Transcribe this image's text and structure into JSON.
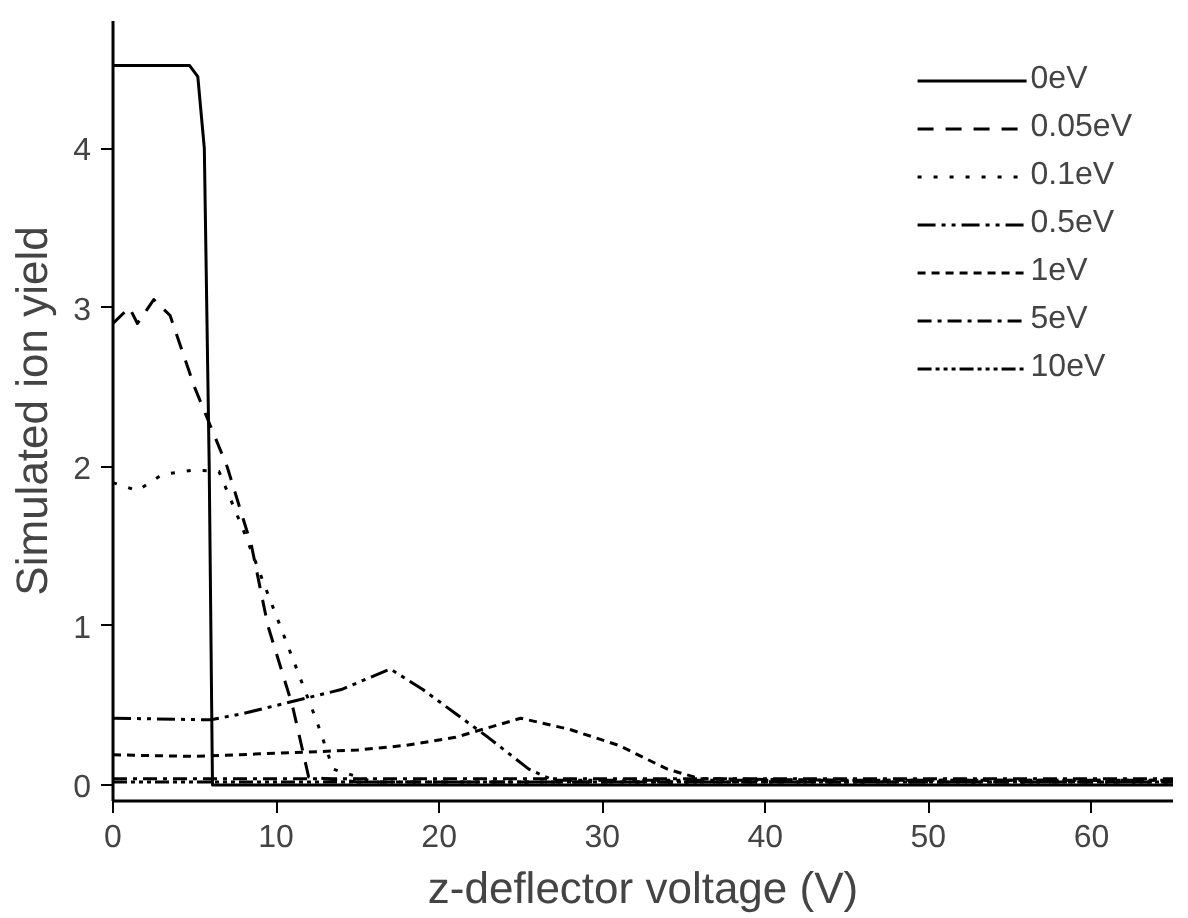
{
  "chart_data": {
    "type": "line",
    "xlabel": "z-deflector voltage (V)",
    "ylabel": "Simulated ion yield",
    "xlim": [
      0,
      65
    ],
    "ylim": [
      -0.1,
      4.8
    ],
    "xticks": [
      0,
      10,
      20,
      30,
      40,
      50,
      60
    ],
    "yticks": [
      0,
      1,
      2,
      3,
      4
    ],
    "grid": false,
    "legend": "top right",
    "marker": "none",
    "series": [
      {
        "name": "0eV",
        "color": "#000000",
        "line_style": "solid",
        "x": [
          0,
          2,
          4,
          4.7,
          5.2,
          5.6,
          5.9,
          6.1,
          10,
          20,
          30,
          40,
          50,
          60,
          65
        ],
        "values": [
          4.52,
          4.52,
          4.52,
          4.52,
          4.45,
          4.0,
          2.0,
          0.0,
          0.0,
          0.0,
          0.0,
          0.0,
          0.0,
          0.0,
          0.0
        ]
      },
      {
        "name": "0.05eV",
        "color": "#000000",
        "line_style": "dashed",
        "x": [
          0,
          1,
          1.5,
          2.5,
          3.5,
          5,
          7,
          8.5,
          9.5,
          11,
          12,
          15,
          30,
          50,
          65
        ],
        "values": [
          2.9,
          3.0,
          2.9,
          3.05,
          2.95,
          2.5,
          2.0,
          1.5,
          1.0,
          0.5,
          0.05,
          0.02,
          0.02,
          0.02,
          0.02
        ]
      },
      {
        "name": "0.1eV",
        "color": "#000000",
        "line_style": "dotted",
        "x": [
          0,
          1.5,
          3,
          5,
          6.5,
          8,
          9.5,
          11,
          12.5,
          13.5,
          16,
          30,
          50,
          65
        ],
        "values": [
          1.9,
          1.85,
          1.95,
          1.98,
          1.97,
          1.6,
          1.2,
          0.8,
          0.4,
          0.1,
          0.02,
          0.02,
          0.02,
          0.02
        ]
      },
      {
        "name": "0.5eV",
        "color": "#000000",
        "line_style": "dashdotdot",
        "x": [
          0,
          6,
          8,
          10,
          12,
          14,
          17,
          19,
          21,
          23,
          25.5,
          27,
          40,
          55,
          65
        ],
        "values": [
          0.42,
          0.41,
          0.45,
          0.5,
          0.55,
          0.6,
          0.73,
          0.6,
          0.45,
          0.3,
          0.1,
          0.03,
          0.03,
          0.03,
          0.03
        ]
      },
      {
        "name": "1eV",
        "color": "#000000",
        "line_style": "shortdash",
        "x": [
          0,
          5,
          10,
          15,
          18,
          21,
          25,
          28,
          31,
          34,
          36,
          45,
          55,
          65
        ],
        "values": [
          0.19,
          0.18,
          0.2,
          0.22,
          0.25,
          0.3,
          0.42,
          0.35,
          0.25,
          0.1,
          0.04,
          0.03,
          0.03,
          0.03
        ]
      },
      {
        "name": "5eV",
        "color": "#000000",
        "line_style": "dashdot",
        "x": [
          0,
          20,
          40,
          65
        ],
        "values": [
          0.04,
          0.04,
          0.04,
          0.04
        ]
      },
      {
        "name": "10eV",
        "color": "#000000",
        "line_style": "dashdotdotdot",
        "x": [
          0,
          20,
          40,
          65
        ],
        "values": [
          0.02,
          0.02,
          0.02,
          0.02
        ]
      }
    ]
  }
}
